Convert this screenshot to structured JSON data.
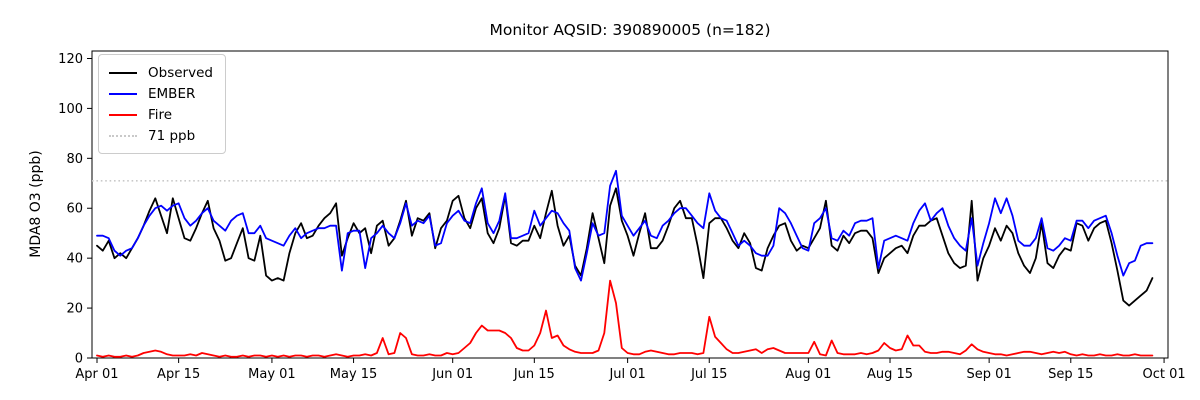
{
  "chart_data": {
    "type": "line",
    "title": "Monitor AQSID: 390890005 (n=182)",
    "xlabel": "",
    "ylabel": "MDA8 O3 (ppb)",
    "background_color": "#ffffff",
    "grid": false,
    "n_points": 182,
    "x_unit": "daily values, day 0 = Apr 01",
    "ylim": [
      0,
      123
    ],
    "yticks": [
      0,
      20,
      40,
      60,
      80,
      100,
      120
    ],
    "xticks": {
      "days": [
        0,
        14,
        30,
        44,
        61,
        75,
        91,
        105,
        122,
        136,
        153,
        167,
        183
      ],
      "labels": [
        "Apr 01",
        "Apr 15",
        "May 01",
        "May 15",
        "Jun 01",
        "Jun 15",
        "Jul 01",
        "Jul 15",
        "Aug 01",
        "Aug 15",
        "Sep 01",
        "Sep 15",
        "Oct 01"
      ]
    },
    "threshold": {
      "value": 71,
      "label": "71 ppb",
      "color": "#c9c9c9",
      "style": "dotted"
    },
    "legend": {
      "position": "upper left",
      "entries": [
        {
          "label": "Observed",
          "color": "#000000",
          "style": "solid"
        },
        {
          "label": "EMBER",
          "color": "#0000ff",
          "style": "solid"
        },
        {
          "label": "Fire",
          "color": "#ff0000",
          "style": "solid"
        },
        {
          "label": "71 ppb",
          "color": "#c9c9c9",
          "style": "dotted"
        }
      ]
    },
    "series": [
      {
        "name": "Observed",
        "color": "#000000",
        "values": [
          45,
          43,
          47,
          40,
          42,
          40,
          44,
          48,
          53,
          59,
          64,
          57,
          50,
          64,
          56,
          48,
          47,
          52,
          58,
          63,
          52,
          47,
          39,
          40,
          46,
          52,
          40,
          39,
          49,
          33,
          31,
          32,
          31,
          42,
          50,
          54,
          48,
          49,
          53,
          56,
          58,
          62,
          41,
          48,
          54,
          50,
          52,
          42,
          53,
          55,
          45,
          48,
          55,
          63,
          49,
          56,
          55,
          58,
          44,
          52,
          55,
          63,
          65,
          56,
          52,
          60,
          64,
          50,
          46,
          52,
          65,
          46,
          45,
          47,
          47,
          53,
          48,
          58,
          67,
          53,
          45,
          49,
          37,
          33,
          44,
          58,
          48,
          38,
          61,
          68,
          55,
          49,
          41,
          50,
          58,
          44,
          44,
          47,
          53,
          60,
          63,
          56,
          56,
          45,
          32,
          54,
          56,
          56,
          52,
          47,
          44,
          50,
          46,
          36,
          35,
          44,
          49,
          53,
          54,
          47,
          43,
          45,
          44,
          48,
          52,
          63,
          45,
          43,
          49,
          46,
          50,
          51,
          51,
          48,
          34,
          40,
          42,
          44,
          45,
          42,
          49,
          53,
          53,
          55,
          56,
          49,
          42,
          38,
          36,
          37,
          63,
          31,
          40,
          45,
          52,
          47,
          53,
          50,
          42,
          37,
          34,
          40,
          54,
          38,
          36,
          41,
          44,
          43,
          54,
          53,
          47,
          52,
          54,
          55,
          46,
          35,
          23,
          21,
          23,
          25,
          27,
          32
        ]
      },
      {
        "name": "EMBER",
        "color": "#0000ff",
        "values": [
          49,
          49,
          48,
          43,
          41,
          43,
          44,
          48,
          53,
          57,
          60,
          61,
          59,
          61,
          62,
          56,
          53,
          55,
          58,
          60,
          55,
          53,
          51,
          55,
          57,
          58,
          50,
          50,
          53,
          48,
          47,
          46,
          45,
          49,
          52,
          48,
          50,
          51,
          52,
          52,
          53,
          53,
          35,
          50,
          51,
          51,
          36,
          48,
          50,
          53,
          50,
          48,
          54,
          62,
          53,
          55,
          54,
          57,
          45,
          46,
          54,
          57,
          59,
          55,
          54,
          62,
          68,
          54,
          50,
          55,
          66,
          48,
          48,
          49,
          50,
          59,
          53,
          56,
          59,
          58,
          54,
          51,
          36,
          31,
          42,
          54,
          49,
          50,
          69,
          75,
          57,
          53,
          49,
          52,
          55,
          49,
          48,
          53,
          55,
          58,
          60,
          60,
          57,
          54,
          52,
          66,
          59,
          56,
          55,
          50,
          45,
          47,
          45,
          42,
          41,
          41,
          45,
          60,
          58,
          54,
          49,
          44,
          43,
          54,
          56,
          60,
          48,
          47,
          51,
          49,
          54,
          55,
          55,
          56,
          36,
          47,
          48,
          49,
          48,
          47,
          54,
          59,
          62,
          55,
          58,
          60,
          53,
          48,
          45,
          43,
          56,
          37,
          46,
          54,
          64,
          58,
          64,
          57,
          47,
          45,
          45,
          48,
          56,
          44,
          43,
          45,
          48,
          47,
          55,
          55,
          52,
          55,
          56,
          57,
          50,
          41,
          33,
          38,
          39,
          45,
          46,
          46
        ]
      },
      {
        "name": "Fire",
        "color": "#ff0000",
        "values": [
          1,
          0.5,
          1,
          0.5,
          0.5,
          1,
          0.5,
          1,
          2,
          2.5,
          3,
          2.5,
          1.5,
          1,
          1,
          1,
          1.5,
          1,
          2,
          1.5,
          1,
          0.5,
          1,
          0.5,
          0.5,
          1,
          0.5,
          1,
          1,
          0.5,
          1,
          0.5,
          1,
          0.5,
          1,
          1,
          0.5,
          1,
          1,
          0.5,
          1,
          1.5,
          1,
          0.5,
          1,
          1,
          1.5,
          1,
          2,
          8,
          1.5,
          2,
          10,
          8,
          1.5,
          1,
          1,
          1.5,
          1,
          1,
          2,
          1.5,
          2,
          4,
          6,
          10,
          13,
          11,
          11,
          11,
          10,
          8,
          4,
          3,
          3,
          5,
          10,
          19,
          8,
          9,
          5,
          3.5,
          2.5,
          2,
          2,
          2,
          3,
          10,
          31,
          22,
          4,
          2,
          1.5,
          1.5,
          2.5,
          3,
          2.5,
          2,
          1.5,
          1.5,
          2,
          2,
          2,
          1.5,
          2,
          16.5,
          8.5,
          6,
          3.5,
          2,
          2,
          2.5,
          3,
          3.5,
          2,
          3.5,
          4,
          3,
          2,
          2,
          2,
          2,
          2,
          6.5,
          1.5,
          1,
          7,
          2,
          1.5,
          1.5,
          1.5,
          2,
          1.5,
          2,
          3,
          6,
          4,
          3,
          3.5,
          9,
          5,
          5,
          2.5,
          2,
          2,
          2.5,
          2.5,
          2,
          1.5,
          3,
          5.5,
          3.5,
          2.5,
          2,
          1.5,
          1.5,
          1,
          1.5,
          2,
          2.5,
          2.5,
          2,
          1.5,
          2,
          2.5,
          2,
          2.5,
          1.5,
          1,
          1.5,
          1,
          1,
          1.5,
          1,
          1,
          1.5,
          1,
          1,
          1.5,
          1,
          1,
          1
        ]
      }
    ]
  }
}
